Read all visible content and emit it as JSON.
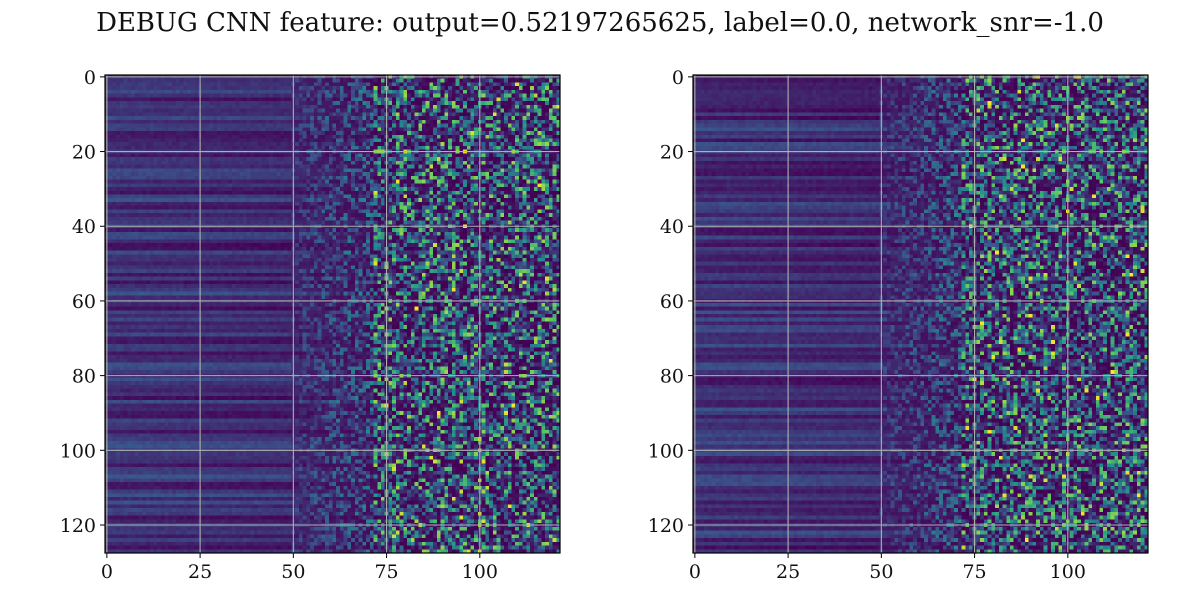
{
  "figure": {
    "title": "DEBUG CNN feature: output=0.52197265625, label=0.0, network_snr=-1.0"
  },
  "chart_data": [
    {
      "type": "heatmap",
      "name": "",
      "title": "",
      "xlabel": "",
      "ylabel": "",
      "rows": 128,
      "cols": 122,
      "xlim": [
        -0.5,
        121.5
      ],
      "ylim": [
        127.5,
        -0.5
      ],
      "y_axis_inverted": true,
      "xticks": [
        0,
        25,
        50,
        75,
        100
      ],
      "yticks": [
        0,
        20,
        40,
        60,
        80,
        100,
        120
      ],
      "grid": true,
      "grid_color": "#b0b0b0",
      "colormap": "viridis",
      "colormap_stops": [
        "#440154",
        "#3b528b",
        "#21918c",
        "#5ec962",
        "#fde725"
      ],
      "value_range": [
        0,
        1
      ],
      "seed": 11
    },
    {
      "type": "heatmap",
      "name": "",
      "title": "",
      "xlabel": "",
      "ylabel": "",
      "rows": 128,
      "cols": 122,
      "xlim": [
        -0.5,
        121.5
      ],
      "ylim": [
        127.5,
        -0.5
      ],
      "y_axis_inverted": true,
      "xticks": [
        0,
        25,
        50,
        75,
        100
      ],
      "yticks": [
        0,
        20,
        40,
        60,
        80,
        100,
        120
      ],
      "grid": true,
      "grid_color": "#b0b0b0",
      "colormap": "viridis",
      "colormap_stops": [
        "#440154",
        "#3b528b",
        "#21918c",
        "#5ec962",
        "#fde725"
      ],
      "value_range": [
        0,
        1
      ],
      "seed": 29
    }
  ]
}
